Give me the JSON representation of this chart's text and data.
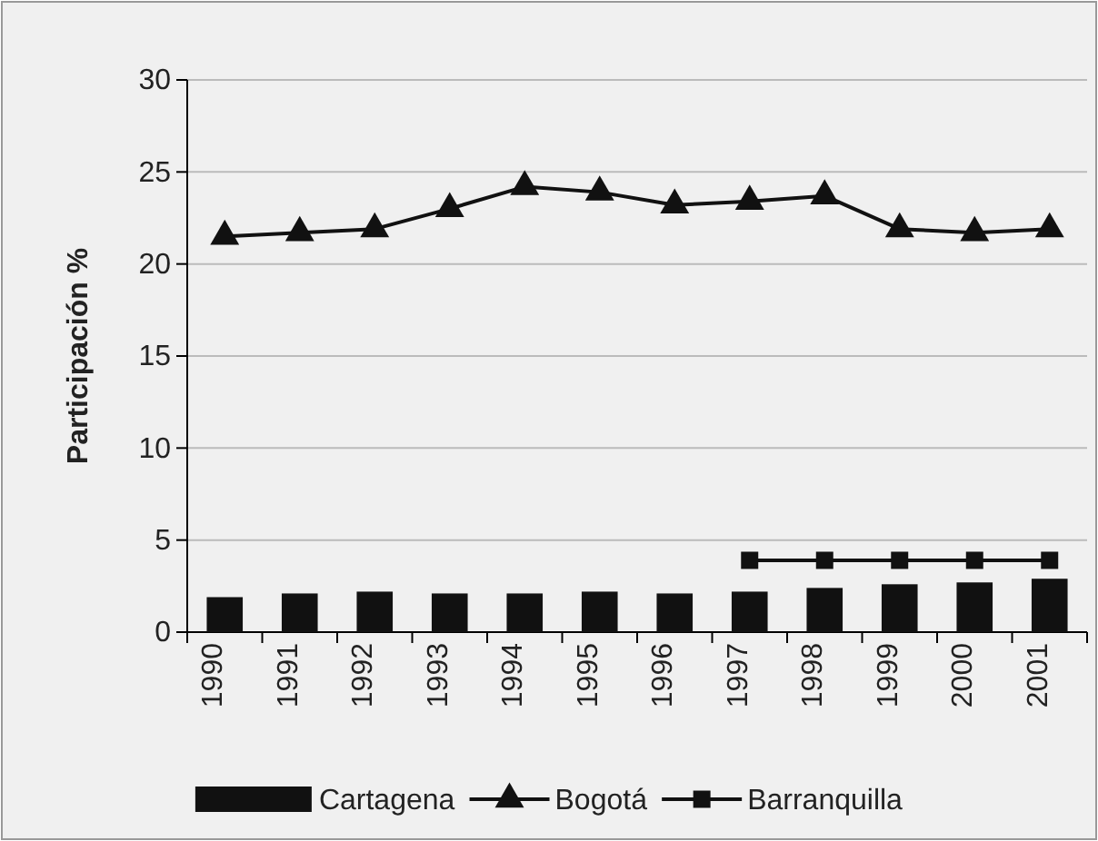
{
  "chart_data": {
    "type": "bar",
    "ylabel": "Participación %",
    "categories": [
      "1990",
      "1991",
      "1992",
      "1993",
      "1994",
      "1995",
      "1996",
      "1997",
      "1998",
      "1999",
      "2000",
      "2001"
    ],
    "series": [
      {
        "name": "Cartagena",
        "color": "#111111",
        "values": [
          1.9,
          2.1,
          2.2,
          2.1,
          2.1,
          2.2,
          2.1,
          2.2,
          2.4,
          2.6,
          2.7,
          2.9
        ]
      },
      {
        "name": "Bogotá",
        "type": "line",
        "marker": "triangle",
        "color": "#111111",
        "values": [
          21.5,
          21.7,
          21.9,
          23.0,
          24.2,
          23.9,
          23.2,
          23.4,
          23.7,
          21.9,
          21.7,
          21.9
        ]
      },
      {
        "name": "Barranquilla",
        "type": "line",
        "marker": "square",
        "color": "#111111",
        "values": [
          null,
          null,
          null,
          null,
          null,
          null,
          null,
          3.9,
          3.9,
          3.9,
          3.9,
          3.9
        ]
      }
    ],
    "ylim": [
      0,
      30
    ],
    "yticks": [
      0,
      5,
      10,
      15,
      20,
      25,
      30
    ],
    "grid": "y",
    "legend": "bottom"
  }
}
